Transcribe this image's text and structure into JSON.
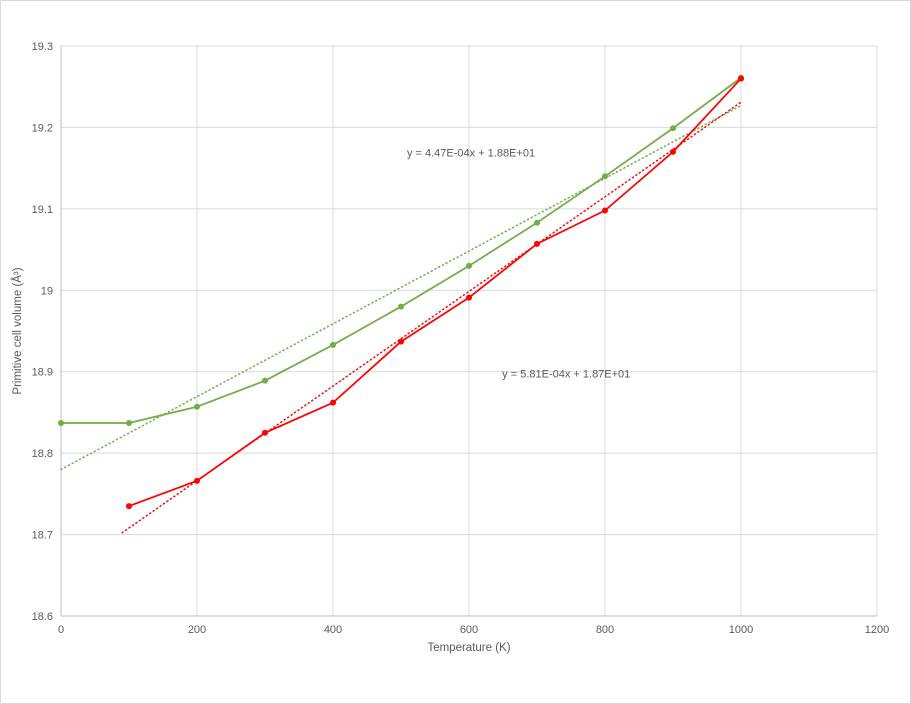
{
  "chart_data": {
    "type": "line",
    "title": "",
    "xlabel": "Temperature (K)",
    "ylabel": "Primitive cell volume (Å³)",
    "xlim": [
      0,
      1200
    ],
    "ylim": [
      18.6,
      19.3
    ],
    "x_ticks": [
      0,
      200,
      400,
      600,
      800,
      1000,
      1200
    ],
    "y_ticks": [
      18.6,
      18.7,
      18.8,
      18.9,
      19,
      19.1,
      19.2,
      19.3
    ],
    "grid": true,
    "legend": "none",
    "colors": {
      "series_green": "#70ad47",
      "series_red": "#ff0000",
      "gridline": "#d9d9d9",
      "axis_text": "#595959"
    },
    "series": [
      {
        "name": "green-series",
        "color": "#70ad47",
        "x": [
          0,
          100,
          200,
          300,
          400,
          500,
          600,
          700,
          800,
          900,
          1000
        ],
        "values": [
          18.837,
          18.837,
          18.857,
          18.889,
          18.933,
          18.98,
          19.03,
          19.083,
          19.14,
          19.199,
          19.261
        ]
      },
      {
        "name": "red-series",
        "color": "#ff0000",
        "x": [
          100,
          200,
          300,
          400,
          500,
          600,
          700,
          800,
          900,
          1000
        ],
        "values": [
          18.735,
          18.766,
          18.825,
          18.862,
          18.937,
          18.991,
          19.057,
          19.098,
          19.17,
          19.26
        ]
      }
    ],
    "trendlines": [
      {
        "for": "green-series",
        "color": "#70ad47",
        "slope": 0.000447,
        "intercept": 18.78,
        "x_start": 0,
        "x_end": 1000,
        "label": "y = 4.47E-04x + 1.88E+01",
        "label_x": 603,
        "label_y": 19.164
      },
      {
        "for": "red-series",
        "color": "#ff0000",
        "slope": 0.000581,
        "intercept": 18.65,
        "x_start": 90,
        "x_end": 1000,
        "label": "y = 5.81E-04x + 1.87E+01",
        "label_x": 743,
        "label_y": 18.893
      }
    ]
  }
}
